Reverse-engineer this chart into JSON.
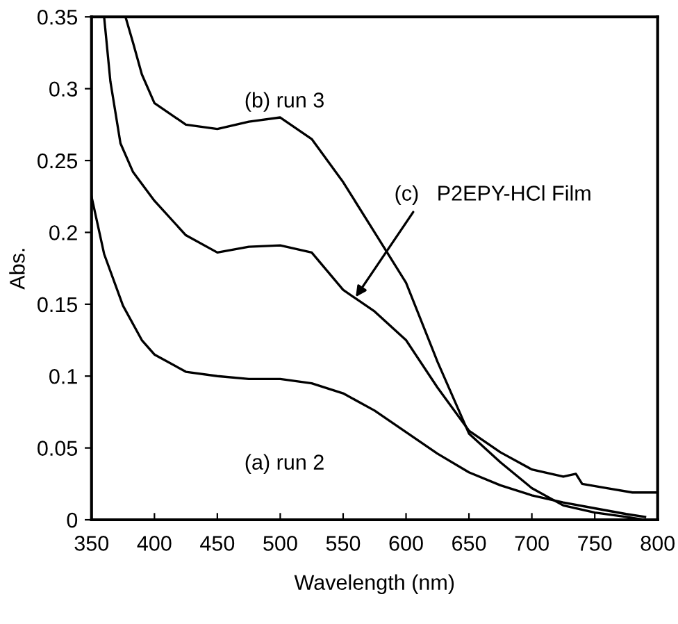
{
  "chart_data": {
    "type": "line",
    "xlabel": "Wavelength (nm)",
    "ylabel": "Abs.",
    "xlim": [
      350,
      800
    ],
    "xticks": [
      350,
      400,
      450,
      500,
      550,
      600,
      650,
      700,
      750,
      800
    ],
    "ylim": [
      0,
      0.35
    ],
    "yticks": [
      0,
      0.05,
      0.1,
      0.15,
      0.2,
      0.25,
      0.3,
      0.35
    ],
    "grid": false,
    "legend": false,
    "marker": "none",
    "line_style": "solid",
    "series": [
      {
        "color": "#000000",
        "x": [
          350,
          360,
          375,
          390,
          400,
          425,
          450,
          475,
          500,
          525,
          550,
          575,
          600,
          625,
          650,
          675,
          700,
          725,
          750,
          775,
          790
        ],
        "values": [
          0.225,
          0.185,
          0.149,
          0.125,
          0.115,
          0.103,
          0.1,
          0.098,
          0.098,
          0.095,
          0.088,
          0.076,
          0.061,
          0.046,
          0.033,
          0.024,
          0.017,
          0.012,
          0.008,
          0.004,
          0.002
        ]
      },
      {
        "color": "#000000",
        "x": [
          377,
          383,
          390,
          400,
          425,
          450,
          475,
          500,
          525,
          550,
          575,
          600,
          625,
          650,
          675,
          700,
          725,
          750,
          775,
          790
        ],
        "values": [
          0.35,
          0.332,
          0.31,
          0.29,
          0.275,
          0.272,
          0.277,
          0.28,
          0.265,
          0.235,
          0.2,
          0.165,
          0.11,
          0.06,
          0.04,
          0.022,
          0.01,
          0.005,
          0.002,
          0.0
        ]
      },
      {
        "color": "#000000",
        "x": [
          360,
          365,
          373,
          383,
          400,
          425,
          450,
          475,
          500,
          525,
          550,
          575,
          600,
          625,
          650,
          675,
          700,
          725,
          735,
          740,
          760,
          780,
          800
        ],
        "values": [
          0.35,
          0.305,
          0.262,
          0.242,
          0.222,
          0.198,
          0.186,
          0.19,
          0.191,
          0.186,
          0.16,
          0.145,
          0.125,
          0.092,
          0.062,
          0.047,
          0.035,
          0.03,
          0.032,
          0.025,
          0.022,
          0.019,
          0.019
        ]
      }
    ],
    "annotations": [
      "(b) run 3",
      "(a) run 2",
      {
        "text": "(c)   P2EPY-HCl Film",
        "x": 560,
        "y": 0.155
      }
    ]
  }
}
